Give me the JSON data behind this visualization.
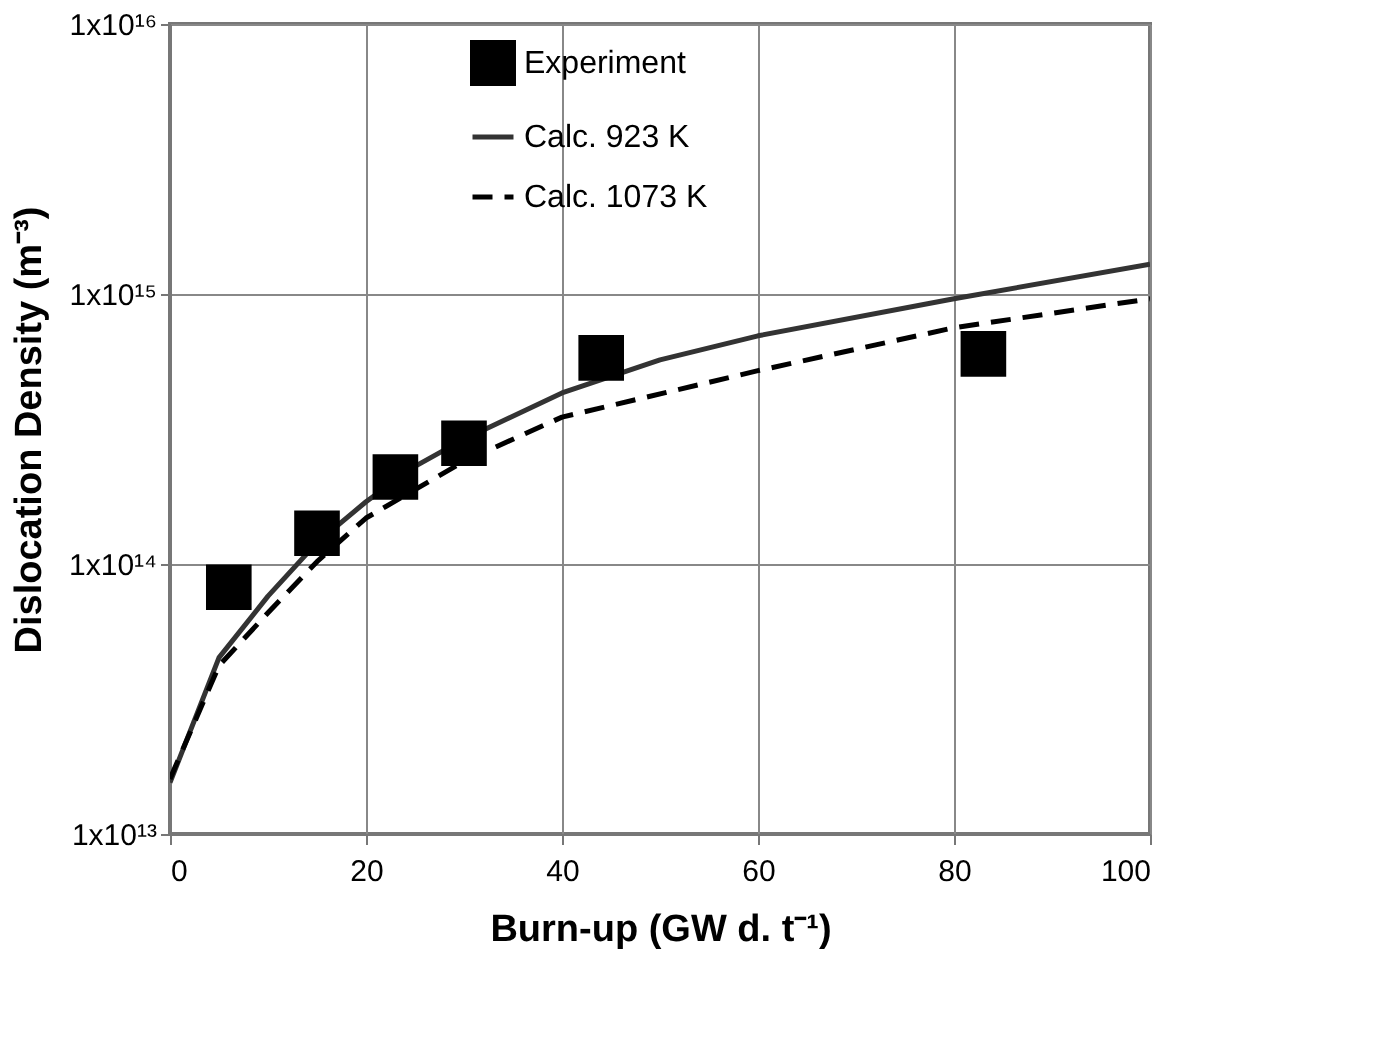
{
  "chart_data": {
    "type": "scatter",
    "xlabel": "Burn-up (GW d. t⁻¹)",
    "ylabel": "Dislocation Density (m⁻³)",
    "xlim": [
      0,
      100
    ],
    "xticks": [
      0,
      20,
      40,
      60,
      80,
      100
    ],
    "ylim": [
      10000000000000.0,
      1e+16
    ],
    "yticks": [
      {
        "value": 10000000000000.0,
        "label": "1x10¹³"
      },
      {
        "value": 100000000000000.0,
        "label": "1x10¹⁴"
      },
      {
        "value": 1000000000000000.0,
        "label": "1x10¹⁵"
      },
      {
        "value": 1e+16,
        "label": "1x10¹⁶"
      }
    ],
    "log": "y",
    "grid": true,
    "legend": "top",
    "series": [
      {
        "name": "Experiment",
        "marker": "square",
        "color": "#000000",
        "x": [
          6,
          15,
          23,
          30,
          44,
          83
        ],
        "values": [
          82000000000000.0,
          130000000000000.0,
          210000000000000.0,
          280000000000000.0,
          580000000000000.0,
          600000000000000.0
        ]
      },
      {
        "name": "Calc. 923 K",
        "type": "line",
        "line_style": "solid",
        "color": "#333333",
        "x": [
          0,
          5,
          10,
          15,
          20,
          25,
          30,
          40,
          50,
          60,
          80,
          100
        ],
        "values": [
          15500000000000.0,
          45000000000000.0,
          76000000000000.0,
          120000000000000.0,
          170000000000000.0,
          230000000000000.0,
          290000000000000.0,
          430000000000000.0,
          570000000000000.0,
          700000000000000.0,
          960000000000000.0,
          1290000000000000.0
        ]
      },
      {
        "name": "Calc. 1073 K",
        "type": "line",
        "line_style": "dashed",
        "color": "#000000",
        "x": [
          0,
          5,
          10,
          15,
          20,
          30,
          40,
          60,
          80,
          100
        ],
        "values": [
          16000000000000.0,
          42000000000000.0,
          66000000000000.0,
          102000000000000.0,
          148000000000000.0,
          240000000000000.0,
          350000000000000.0,
          520000000000000.0,
          750000000000000.0,
          960000000000000.0
        ]
      }
    ]
  }
}
